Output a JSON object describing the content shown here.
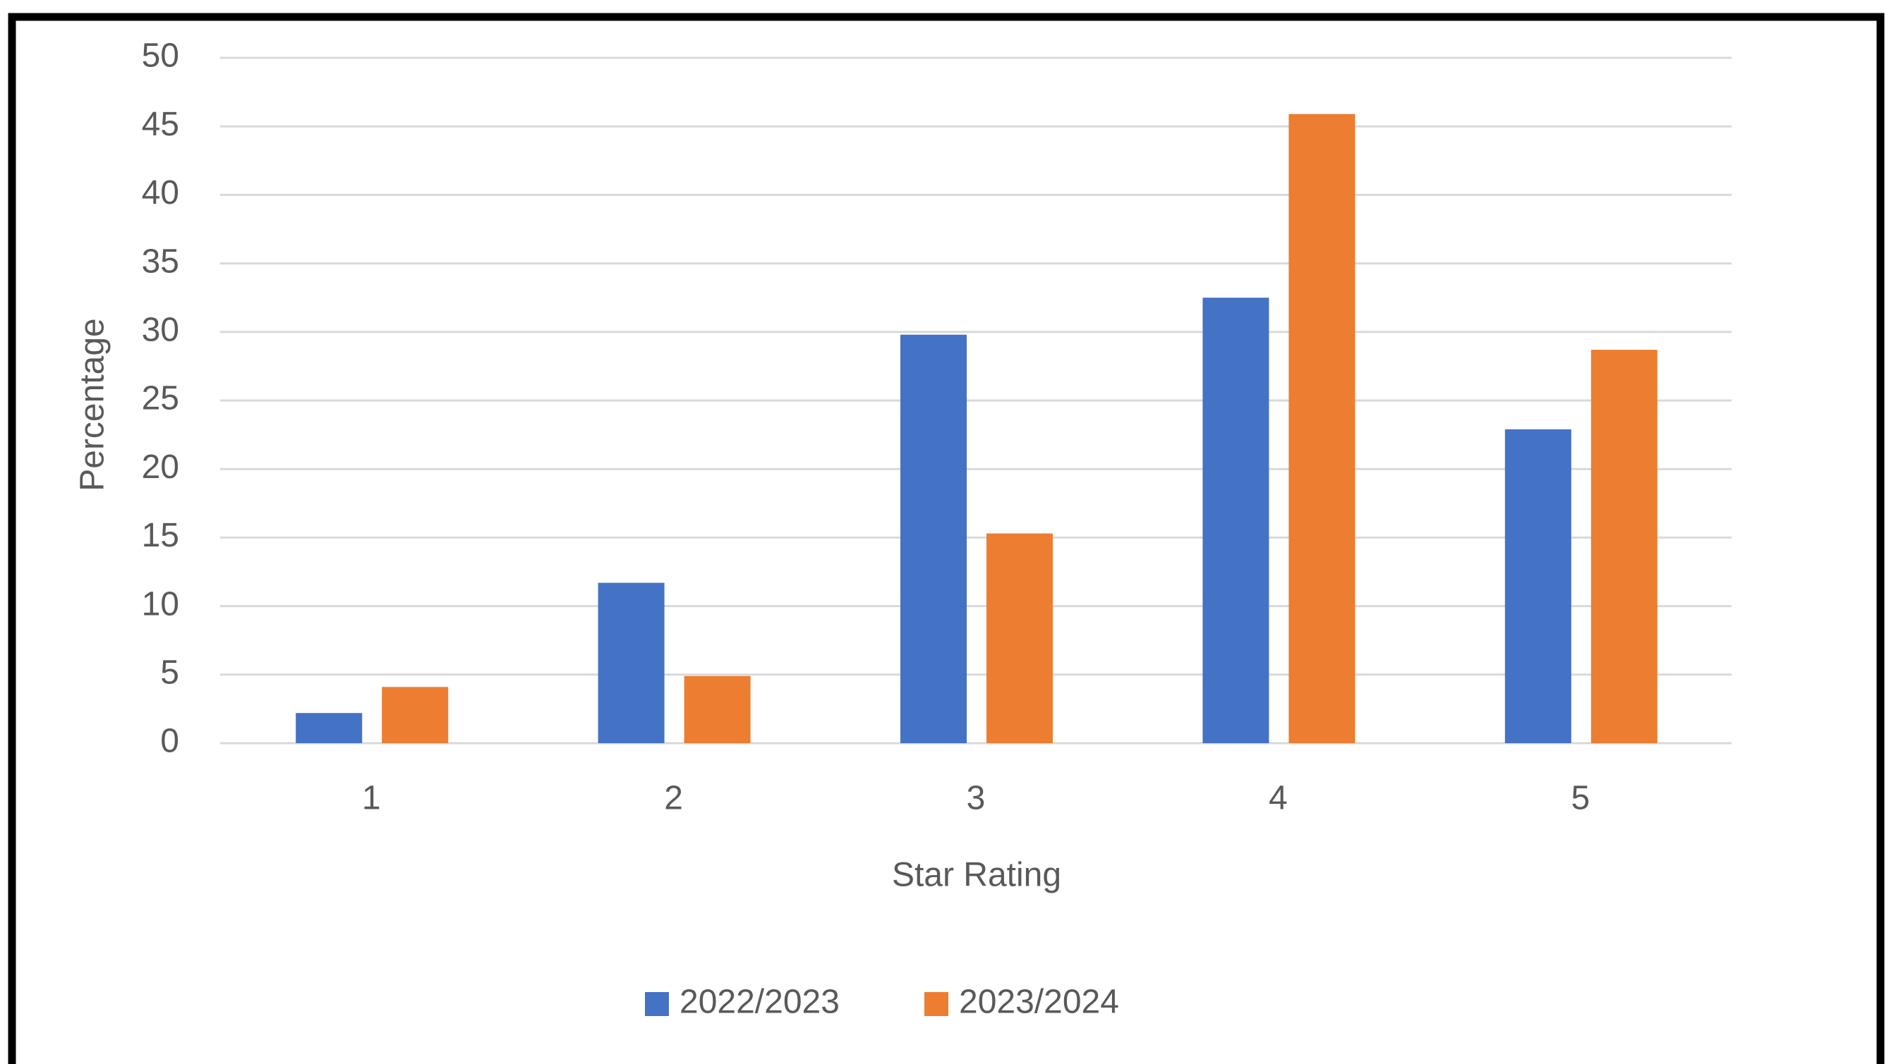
{
  "chart_data": {
    "type": "bar",
    "categories": [
      "1",
      "2",
      "3",
      "4",
      "5"
    ],
    "series": [
      {
        "name": "2022/2023",
        "color": "#4472c4",
        "values": [
          2.2,
          11.7,
          29.8,
          32.5,
          22.9
        ]
      },
      {
        "name": "2023/2024",
        "color": "#ed7d31",
        "values": [
          4.1,
          4.9,
          15.3,
          45.9,
          28.7
        ]
      }
    ],
    "x_label": "Star Rating",
    "y_label": "Percentage",
    "ylim": [
      0,
      50
    ],
    "yticks": [
      0,
      5,
      10,
      15,
      20,
      25,
      30,
      35,
      40,
      45,
      50
    ],
    "grid": true,
    "legend": "bottom"
  }
}
